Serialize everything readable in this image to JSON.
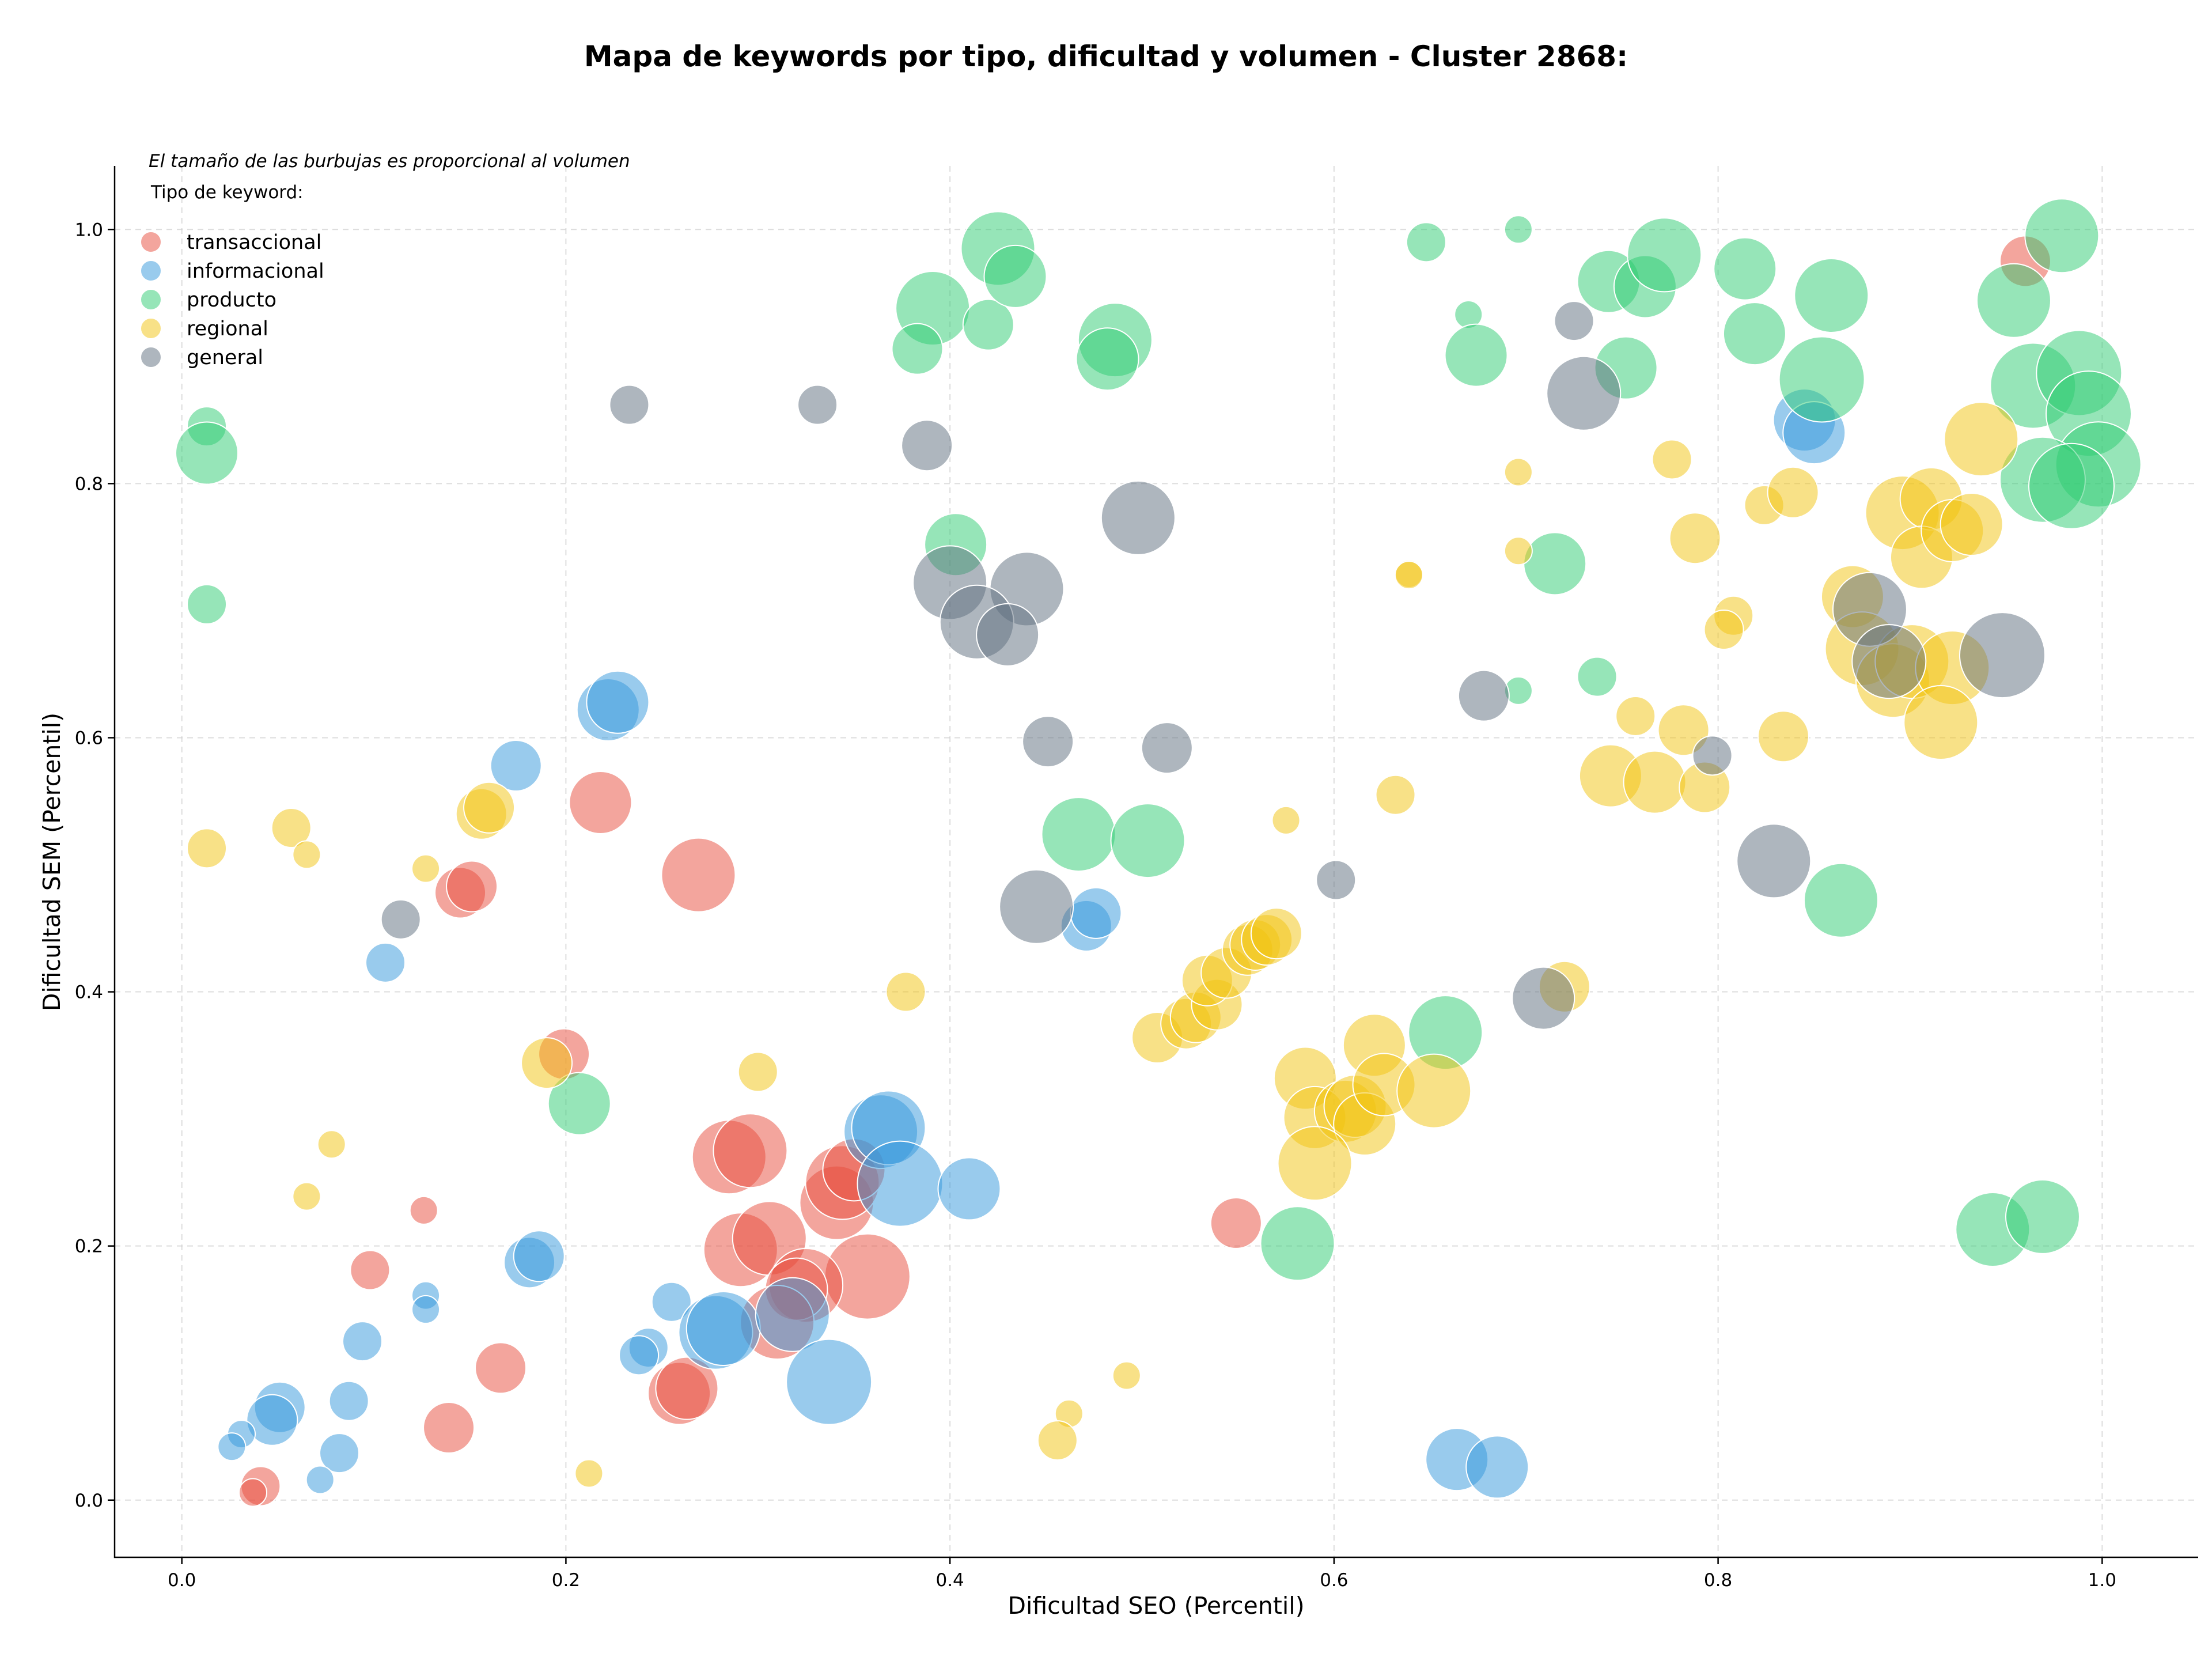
{
  "chart_data": {
    "type": "scatter",
    "title": "Mapa de keywords por tipo, dificultad y volumen - Cluster 2868:",
    "xlabel": "Dificultad SEO (Percentil)",
    "ylabel": "Dificultad SEM (Percentil)",
    "xlim": [
      -0.035,
      1.05
    ],
    "ylim": [
      -0.045,
      1.05
    ],
    "xticks": [
      "0.0",
      "0.2",
      "0.4",
      "0.6",
      "0.8",
      "1.0"
    ],
    "yticks": [
      "0.0",
      "0.2",
      "0.4",
      "0.6",
      "0.8",
      "1.0"
    ],
    "grid": true,
    "note": "El tamaño de las burbujas es proporcional al volumen",
    "legend": {
      "title": "Tipo de keyword:",
      "placement": "top-left"
    },
    "series": [
      {
        "name": "transaccional",
        "color": "#e74c3c",
        "points": [
          {
            "x": 0.96,
            "y": 0.975,
            "s": 3
          },
          {
            "x": 0.218,
            "y": 0.549,
            "s": 4
          },
          {
            "x": 0.269,
            "y": 0.492,
            "s": 5
          },
          {
            "x": 0.145,
            "y": 0.478,
            "s": 3
          },
          {
            "x": 0.151,
            "y": 0.483,
            "s": 3
          },
          {
            "x": 0.199,
            "y": 0.351,
            "s": 3
          },
          {
            "x": 0.126,
            "y": 0.228,
            "s": 1
          },
          {
            "x": 0.098,
            "y": 0.181,
            "s": 2
          },
          {
            "x": 0.285,
            "y": 0.27,
            "s": 5
          },
          {
            "x": 0.296,
            "y": 0.275,
            "s": 5
          },
          {
            "x": 0.291,
            "y": 0.197,
            "s": 5
          },
          {
            "x": 0.306,
            "y": 0.206,
            "s": 5
          },
          {
            "x": 0.341,
            "y": 0.234,
            "s": 5
          },
          {
            "x": 0.344,
            "y": 0.25,
            "s": 5
          },
          {
            "x": 0.35,
            "y": 0.26,
            "s": 4
          },
          {
            "x": 0.357,
            "y": 0.176,
            "s": 6
          },
          {
            "x": 0.325,
            "y": 0.169,
            "s": 5
          },
          {
            "x": 0.32,
            "y": 0.166,
            "s": 4
          },
          {
            "x": 0.31,
            "y": 0.14,
            "s": 5
          },
          {
            "x": 0.166,
            "y": 0.104,
            "s": 3
          },
          {
            "x": 0.139,
            "y": 0.057,
            "s": 3
          },
          {
            "x": 0.259,
            "y": 0.084,
            "s": 4
          },
          {
            "x": 0.263,
            "y": 0.088,
            "s": 4
          },
          {
            "x": 0.041,
            "y": 0.011,
            "s": 2
          },
          {
            "x": 0.037,
            "y": 0.006,
            "s": 1
          },
          {
            "x": 0.549,
            "y": 0.218,
            "s": 3
          }
        ]
      },
      {
        "name": "informacional",
        "color": "#3498db",
        "points": [
          {
            "x": 0.222,
            "y": 0.622,
            "s": 4
          },
          {
            "x": 0.227,
            "y": 0.628,
            "s": 4
          },
          {
            "x": 0.174,
            "y": 0.578,
            "s": 3
          },
          {
            "x": 0.106,
            "y": 0.423,
            "s": 2
          },
          {
            "x": 0.181,
            "y": 0.187,
            "s": 3
          },
          {
            "x": 0.186,
            "y": 0.192,
            "s": 3
          },
          {
            "x": 0.127,
            "y": 0.161,
            "s": 1
          },
          {
            "x": 0.127,
            "y": 0.15,
            "s": 1
          },
          {
            "x": 0.094,
            "y": 0.125,
            "s": 2
          },
          {
            "x": 0.087,
            "y": 0.078,
            "s": 2
          },
          {
            "x": 0.082,
            "y": 0.037,
            "s": 2
          },
          {
            "x": 0.072,
            "y": 0.016,
            "s": 1
          },
          {
            "x": 0.051,
            "y": 0.073,
            "s": 3
          },
          {
            "x": 0.047,
            "y": 0.063,
            "s": 3
          },
          {
            "x": 0.031,
            "y": 0.052,
            "s": 1
          },
          {
            "x": 0.026,
            "y": 0.042,
            "s": 1
          },
          {
            "x": 0.255,
            "y": 0.156,
            "s": 2
          },
          {
            "x": 0.243,
            "y": 0.12,
            "s": 2
          },
          {
            "x": 0.238,
            "y": 0.114,
            "s": 2
          },
          {
            "x": 0.278,
            "y": 0.132,
            "s": 5
          },
          {
            "x": 0.282,
            "y": 0.135,
            "s": 5
          },
          {
            "x": 0.318,
            "y": 0.146,
            "s": 5
          },
          {
            "x": 0.337,
            "y": 0.093,
            "s": 6
          },
          {
            "x": 0.364,
            "y": 0.29,
            "s": 5
          },
          {
            "x": 0.368,
            "y": 0.293,
            "s": 5
          },
          {
            "x": 0.374,
            "y": 0.249,
            "s": 6
          },
          {
            "x": 0.41,
            "y": 0.245,
            "s": 4
          },
          {
            "x": 0.471,
            "y": 0.452,
            "s": 3
          },
          {
            "x": 0.476,
            "y": 0.462,
            "s": 3
          },
          {
            "x": 0.845,
            "y": 0.85,
            "s": 4
          },
          {
            "x": 0.85,
            "y": 0.84,
            "s": 4
          },
          {
            "x": 0.664,
            "y": 0.032,
            "s": 4
          },
          {
            "x": 0.685,
            "y": 0.026,
            "s": 4
          }
        ]
      },
      {
        "name": "producto",
        "color": "#2ecc71",
        "points": [
          {
            "x": 0.013,
            "y": 0.845,
            "s": 2
          },
          {
            "x": 0.013,
            "y": 0.824,
            "s": 4
          },
          {
            "x": 0.013,
            "y": 0.705,
            "s": 2
          },
          {
            "x": 0.207,
            "y": 0.312,
            "s": 4
          },
          {
            "x": 0.391,
            "y": 0.938,
            "s": 5
          },
          {
            "x": 0.383,
            "y": 0.906,
            "s": 3
          },
          {
            "x": 0.42,
            "y": 0.925,
            "s": 3
          },
          {
            "x": 0.425,
            "y": 0.985,
            "s": 5
          },
          {
            "x": 0.434,
            "y": 0.963,
            "s": 4
          },
          {
            "x": 0.403,
            "y": 0.752,
            "s": 4
          },
          {
            "x": 0.486,
            "y": 0.913,
            "s": 5
          },
          {
            "x": 0.482,
            "y": 0.898,
            "s": 4
          },
          {
            "x": 0.467,
            "y": 0.524,
            "s": 5
          },
          {
            "x": 0.503,
            "y": 0.519,
            "s": 5
          },
          {
            "x": 0.648,
            "y": 0.99,
            "s": 2
          },
          {
            "x": 0.696,
            "y": 1.0,
            "s": 1
          },
          {
            "x": 0.67,
            "y": 0.933,
            "s": 1
          },
          {
            "x": 0.674,
            "y": 0.901,
            "s": 4
          },
          {
            "x": 0.715,
            "y": 0.737,
            "s": 4
          },
          {
            "x": 0.696,
            "y": 0.637,
            "s": 1
          },
          {
            "x": 0.737,
            "y": 0.648,
            "s": 2
          },
          {
            "x": 0.743,
            "y": 0.959,
            "s": 4
          },
          {
            "x": 0.762,
            "y": 0.955,
            "s": 4
          },
          {
            "x": 0.772,
            "y": 0.98,
            "s": 5
          },
          {
            "x": 0.752,
            "y": 0.891,
            "s": 4
          },
          {
            "x": 0.814,
            "y": 0.969,
            "s": 4
          },
          {
            "x": 0.819,
            "y": 0.918,
            "s": 4
          },
          {
            "x": 0.859,
            "y": 0.948,
            "s": 5
          },
          {
            "x": 0.854,
            "y": 0.882,
            "s": 6
          },
          {
            "x": 0.658,
            "y": 0.368,
            "s": 5
          },
          {
            "x": 0.581,
            "y": 0.202,
            "s": 5
          },
          {
            "x": 0.864,
            "y": 0.472,
            "s": 5
          },
          {
            "x": 0.979,
            "y": 0.995,
            "s": 5
          },
          {
            "x": 0.954,
            "y": 0.944,
            "s": 5
          },
          {
            "x": 0.964,
            "y": 0.877,
            "s": 6
          },
          {
            "x": 0.988,
            "y": 0.887,
            "s": 6
          },
          {
            "x": 0.993,
            "y": 0.855,
            "s": 6
          },
          {
            "x": 0.998,
            "y": 0.815,
            "s": 6
          },
          {
            "x": 0.969,
            "y": 0.803,
            "s": 6
          },
          {
            "x": 0.984,
            "y": 0.798,
            "s": 6
          },
          {
            "x": 0.943,
            "y": 0.213,
            "s": 5
          },
          {
            "x": 0.969,
            "y": 0.223,
            "s": 5
          }
        ]
      },
      {
        "name": "regional",
        "color": "#f1c40f",
        "points": [
          {
            "x": 0.013,
            "y": 0.513,
            "s": 2
          },
          {
            "x": 0.057,
            "y": 0.529,
            "s": 2
          },
          {
            "x": 0.065,
            "y": 0.508,
            "s": 1
          },
          {
            "x": 0.127,
            "y": 0.497,
            "s": 1
          },
          {
            "x": 0.156,
            "y": 0.54,
            "s": 3
          },
          {
            "x": 0.16,
            "y": 0.545,
            "s": 3
          },
          {
            "x": 0.19,
            "y": 0.344,
            "s": 3
          },
          {
            "x": 0.078,
            "y": 0.28,
            "s": 1
          },
          {
            "x": 0.065,
            "y": 0.239,
            "s": 1
          },
          {
            "x": 0.212,
            "y": 0.021,
            "s": 1
          },
          {
            "x": 0.377,
            "y": 0.4,
            "s": 2
          },
          {
            "x": 0.3,
            "y": 0.337,
            "s": 2
          },
          {
            "x": 0.462,
            "y": 0.068,
            "s": 1
          },
          {
            "x": 0.456,
            "y": 0.047,
            "s": 2
          },
          {
            "x": 0.492,
            "y": 0.098,
            "s": 1
          },
          {
            "x": 0.575,
            "y": 0.535,
            "s": 1
          },
          {
            "x": 0.632,
            "y": 0.555,
            "s": 2
          },
          {
            "x": 0.639,
            "y": 0.729,
            "s": 1
          },
          {
            "x": 0.639,
            "y": 0.728,
            "s": 1
          },
          {
            "x": 0.696,
            "y": 0.809,
            "s": 1
          },
          {
            "x": 0.696,
            "y": 0.747,
            "s": 1
          },
          {
            "x": 0.776,
            "y": 0.819,
            "s": 2
          },
          {
            "x": 0.788,
            "y": 0.757,
            "s": 3
          },
          {
            "x": 0.824,
            "y": 0.783,
            "s": 2
          },
          {
            "x": 0.839,
            "y": 0.793,
            "s": 3
          },
          {
            "x": 0.808,
            "y": 0.696,
            "s": 2
          },
          {
            "x": 0.803,
            "y": 0.685,
            "s": 2
          },
          {
            "x": 0.757,
            "y": 0.617,
            "s": 2
          },
          {
            "x": 0.782,
            "y": 0.606,
            "s": 3
          },
          {
            "x": 0.834,
            "y": 0.601,
            "s": 3
          },
          {
            "x": 0.744,
            "y": 0.57,
            "s": 4
          },
          {
            "x": 0.767,
            "y": 0.565,
            "s": 4
          },
          {
            "x": 0.793,
            "y": 0.561,
            "s": 3
          },
          {
            "x": 0.508,
            "y": 0.364,
            "s": 3
          },
          {
            "x": 0.523,
            "y": 0.375,
            "s": 3
          },
          {
            "x": 0.528,
            "y": 0.38,
            "s": 3
          },
          {
            "x": 0.539,
            "y": 0.39,
            "s": 3
          },
          {
            "x": 0.534,
            "y": 0.409,
            "s": 3
          },
          {
            "x": 0.544,
            "y": 0.415,
            "s": 3
          },
          {
            "x": 0.555,
            "y": 0.433,
            "s": 3
          },
          {
            "x": 0.559,
            "y": 0.437,
            "s": 3
          },
          {
            "x": 0.565,
            "y": 0.441,
            "s": 3
          },
          {
            "x": 0.57,
            "y": 0.446,
            "s": 3
          },
          {
            "x": 0.585,
            "y": 0.332,
            "s": 4
          },
          {
            "x": 0.59,
            "y": 0.301,
            "s": 4
          },
          {
            "x": 0.606,
            "y": 0.306,
            "s": 4
          },
          {
            "x": 0.611,
            "y": 0.31,
            "s": 4
          },
          {
            "x": 0.616,
            "y": 0.296,
            "s": 4
          },
          {
            "x": 0.621,
            "y": 0.358,
            "s": 4
          },
          {
            "x": 0.626,
            "y": 0.327,
            "s": 4
          },
          {
            "x": 0.652,
            "y": 0.322,
            "s": 5
          },
          {
            "x": 0.59,
            "y": 0.265,
            "s": 5
          },
          {
            "x": 0.72,
            "y": 0.404,
            "s": 3
          },
          {
            "x": 0.896,
            "y": 0.777,
            "s": 5
          },
          {
            "x": 0.911,
            "y": 0.788,
            "s": 4
          },
          {
            "x": 0.906,
            "y": 0.742,
            "s": 4
          },
          {
            "x": 0.922,
            "y": 0.763,
            "s": 4
          },
          {
            "x": 0.932,
            "y": 0.768,
            "s": 4
          },
          {
            "x": 0.937,
            "y": 0.835,
            "s": 5
          },
          {
            "x": 0.87,
            "y": 0.711,
            "s": 4
          },
          {
            "x": 0.875,
            "y": 0.67,
            "s": 5
          },
          {
            "x": 0.891,
            "y": 0.645,
            "s": 5
          },
          {
            "x": 0.901,
            "y": 0.66,
            "s": 5
          },
          {
            "x": 0.922,
            "y": 0.655,
            "s": 5
          },
          {
            "x": 0.916,
            "y": 0.612,
            "s": 5
          }
        ]
      },
      {
        "name": "general",
        "color": "#5d6d7e",
        "points": [
          {
            "x": 0.233,
            "y": 0.862,
            "s": 2
          },
          {
            "x": 0.331,
            "y": 0.862,
            "s": 2
          },
          {
            "x": 0.388,
            "y": 0.83,
            "s": 3
          },
          {
            "x": 0.498,
            "y": 0.773,
            "s": 5
          },
          {
            "x": 0.4,
            "y": 0.722,
            "s": 5
          },
          {
            "x": 0.44,
            "y": 0.717,
            "s": 5
          },
          {
            "x": 0.414,
            "y": 0.691,
            "s": 5
          },
          {
            "x": 0.43,
            "y": 0.681,
            "s": 4
          },
          {
            "x": 0.451,
            "y": 0.597,
            "s": 3
          },
          {
            "x": 0.513,
            "y": 0.592,
            "s": 3
          },
          {
            "x": 0.114,
            "y": 0.457,
            "s": 2
          },
          {
            "x": 0.445,
            "y": 0.467,
            "s": 5
          },
          {
            "x": 0.601,
            "y": 0.488,
            "s": 2
          },
          {
            "x": 0.678,
            "y": 0.633,
            "s": 3
          },
          {
            "x": 0.725,
            "y": 0.928,
            "s": 2
          },
          {
            "x": 0.73,
            "y": 0.871,
            "s": 5
          },
          {
            "x": 0.797,
            "y": 0.586,
            "s": 2
          },
          {
            "x": 0.829,
            "y": 0.503,
            "s": 5
          },
          {
            "x": 0.709,
            "y": 0.395,
            "s": 4
          },
          {
            "x": 0.879,
            "y": 0.701,
            "s": 5
          },
          {
            "x": 0.889,
            "y": 0.66,
            "s": 5
          },
          {
            "x": 0.948,
            "y": 0.665,
            "s": 6
          }
        ]
      }
    ]
  }
}
